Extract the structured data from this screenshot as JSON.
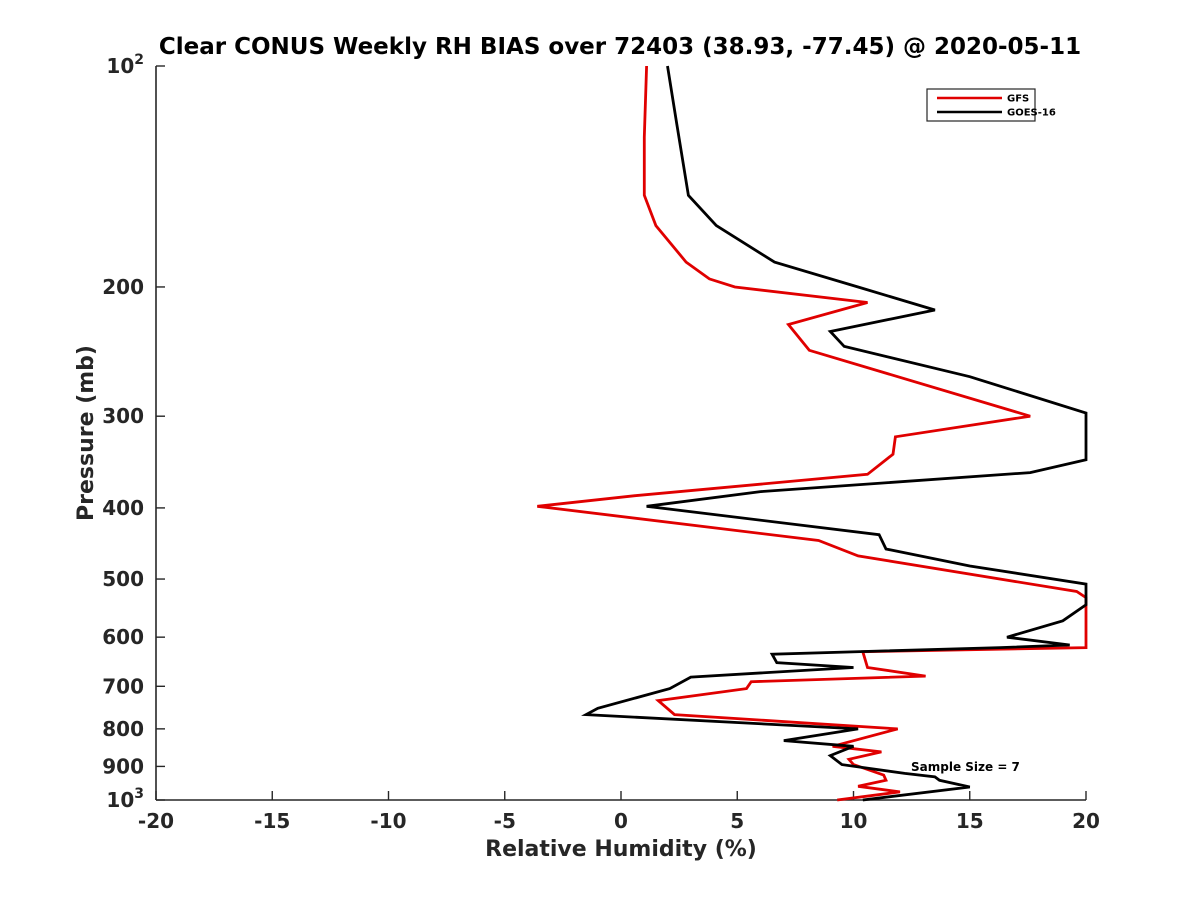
{
  "chart_data": {
    "type": "line",
    "title": "Clear CONUS Weekly RH BIAS over 72403 (38.93, -77.45) @ 2020-05-11",
    "xlabel": "Relative Humidity (%)",
    "ylabel": "Pressure (mb)",
    "xlim": [
      -20,
      20
    ],
    "ylim": [
      100,
      1000
    ],
    "y_scale": "log",
    "y_reversed": true,
    "x_ticks": [
      "-20",
      "-15",
      "-10",
      "-5",
      "0",
      "5",
      "10",
      "15",
      "20"
    ],
    "y_ticks": [
      {
        "value": 100,
        "base": "10",
        "exp": "2"
      },
      {
        "value": 200,
        "base": "200",
        "exp": ""
      },
      {
        "value": 300,
        "base": "300",
        "exp": ""
      },
      {
        "value": 400,
        "base": "400",
        "exp": ""
      },
      {
        "value": 500,
        "base": "500",
        "exp": ""
      },
      {
        "value": 600,
        "base": "600",
        "exp": ""
      },
      {
        "value": 700,
        "base": "700",
        "exp": ""
      },
      {
        "value": 800,
        "base": "800",
        "exp": ""
      },
      {
        "value": 900,
        "base": "900",
        "exp": ""
      },
      {
        "value": 1000,
        "base": "10",
        "exp": "3"
      }
    ],
    "grid": false,
    "legend_position": "top-right",
    "annotation": "Sample Size = 7",
    "series": [
      {
        "name": "GFS",
        "color": "#e00000",
        "points": [
          [
            1.1,
            100
          ],
          [
            1.0,
            125
          ],
          [
            1.0,
            150
          ],
          [
            1.5,
            165
          ],
          [
            2.8,
            185
          ],
          [
            3.8,
            195
          ],
          [
            4.9,
            200
          ],
          [
            10.6,
            210
          ],
          [
            7.2,
            225
          ],
          [
            8.1,
            244
          ],
          [
            17.6,
            300
          ],
          [
            11.8,
            320
          ],
          [
            11.7,
            338
          ],
          [
            10.6,
            360
          ],
          [
            0.6,
            385
          ],
          [
            -3.6,
            398
          ],
          [
            8.5,
            443
          ],
          [
            10.2,
            465
          ],
          [
            19.6,
            520
          ],
          [
            20.0,
            530
          ],
          [
            20.0,
            620
          ],
          [
            10.4,
            628
          ],
          [
            10.6,
            660
          ],
          [
            13.1,
            678
          ],
          [
            5.6,
            690
          ],
          [
            5.4,
            705
          ],
          [
            1.6,
            732
          ],
          [
            2.3,
            765
          ],
          [
            7.8,
            785
          ],
          [
            11.9,
            800
          ],
          [
            9.1,
            845
          ],
          [
            11.2,
            860
          ],
          [
            9.8,
            880
          ],
          [
            10.0,
            895
          ],
          [
            11.3,
            925
          ],
          [
            11.4,
            940
          ],
          [
            10.2,
            958
          ],
          [
            12.0,
            975
          ],
          [
            9.3,
            1000
          ]
        ]
      },
      {
        "name": "GOES-16",
        "color": "#000000",
        "points": [
          [
            2.0,
            100
          ],
          [
            2.4,
            120
          ],
          [
            2.9,
            150
          ],
          [
            4.1,
            165
          ],
          [
            6.6,
            185
          ],
          [
            10.2,
            200
          ],
          [
            13.5,
            215
          ],
          [
            9.0,
            230
          ],
          [
            9.6,
            241
          ],
          [
            15.0,
            265
          ],
          [
            20.0,
            297
          ],
          [
            20.0,
            344
          ],
          [
            17.6,
            358
          ],
          [
            6.0,
            380
          ],
          [
            1.1,
            398
          ],
          [
            11.1,
            435
          ],
          [
            11.4,
            455
          ],
          [
            15.0,
            480
          ],
          [
            20.0,
            508
          ],
          [
            20.0,
            542
          ],
          [
            19.0,
            570
          ],
          [
            16.6,
            600
          ],
          [
            19.3,
            615
          ],
          [
            16.3,
            620
          ],
          [
            6.5,
            633
          ],
          [
            6.7,
            650
          ],
          [
            10.0,
            660
          ],
          [
            3.0,
            680
          ],
          [
            2.1,
            705
          ],
          [
            -1.0,
            750
          ],
          [
            -1.5,
            765
          ],
          [
            10.2,
            800
          ],
          [
            7.0,
            830
          ],
          [
            10.0,
            845
          ],
          [
            9.0,
            870
          ],
          [
            9.5,
            895
          ],
          [
            12.2,
            920
          ],
          [
            13.5,
            930
          ],
          [
            13.7,
            940
          ],
          [
            15.0,
            960
          ],
          [
            10.4,
            1000
          ]
        ]
      }
    ]
  }
}
